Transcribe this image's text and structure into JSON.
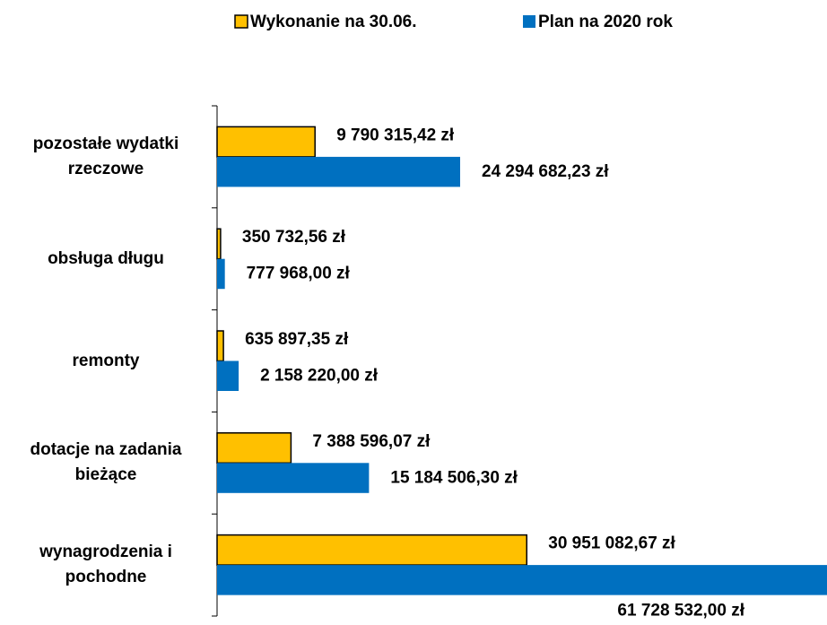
{
  "chart_data": {
    "type": "hbar",
    "categories": [
      "pozostałe wydatki rzeczowe",
      "obsługa długu",
      "remonty",
      "dotacje na zadania bieżące",
      "wynagrodzenia i pochodne"
    ],
    "series": [
      {
        "name": "Wykonanie na 30.06.",
        "color": "#FFC000",
        "values": [
          9790315.42,
          350732.56,
          635897.35,
          7388596.07,
          30951082.67
        ],
        "value_labels": [
          "9 790 315,42 zł",
          "350 732,56 zł",
          "635 897,35 zł",
          "7 388 596,07 zł",
          "30 951 082,67 zł"
        ]
      },
      {
        "name": "Plan na 2020 rok",
        "color": "#0070C0",
        "values": [
          24294682.23,
          777968.0,
          2158220.0,
          15184506.3,
          61728532.0
        ],
        "value_labels": [
          "24 294 682,23 zł",
          "777 968,00 zł",
          "2 158 220,00 zł",
          "15 184 506,30 zł",
          "61 728 532,00 zł"
        ]
      }
    ]
  }
}
